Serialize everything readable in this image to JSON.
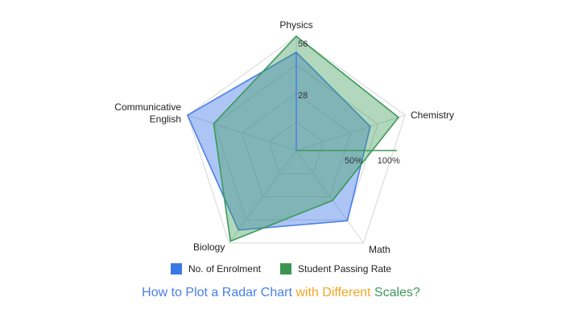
{
  "chart_data": {
    "type": "radar",
    "axes": [
      "Physics",
      "Chemistry",
      "Math",
      "Biology",
      "Communicative English"
    ],
    "axis_display_lines": [
      [
        "Physics"
      ],
      [
        "Chemistry"
      ],
      [
        "Math"
      ],
      [
        "Biology"
      ],
      [
        "Communicative",
        "English"
      ]
    ],
    "series": [
      {
        "name": "No. of Enrolment",
        "color": "#4a7fe8",
        "values": [
          0.86,
          0.68,
          0.76,
          0.86,
          1.0
        ]
      },
      {
        "name": "Student Passing Rate",
        "color": "#3b9a5a",
        "values": [
          1.0,
          0.94,
          0.54,
          0.98,
          0.76
        ]
      }
    ],
    "tick_labels": [
      {
        "text": "28",
        "axis": "Physics",
        "r": 0.5
      },
      {
        "text": "56",
        "axis": "Physics",
        "r": 0.95
      },
      {
        "text": "50%",
        "axis": "Chemistry",
        "r": 0.5
      },
      {
        "text": "100%",
        "axis": "Chemistry",
        "r": 0.85
      }
    ],
    "grid": true,
    "grid_levels": 4,
    "legend_position": "bottom"
  },
  "legend": {
    "items": [
      {
        "label": "No. of Enrolment",
        "color": "#3b78e7"
      },
      {
        "label": "Student Passing Rate",
        "color": "#3a9450"
      }
    ]
  },
  "caption": {
    "part1": "How to Plot a Radar Chart",
    "part2": " with Different",
    "part3": " Scales?",
    "color1": "#4a7fe8",
    "color2": "#f5a623",
    "color3": "#3b9a5a"
  }
}
